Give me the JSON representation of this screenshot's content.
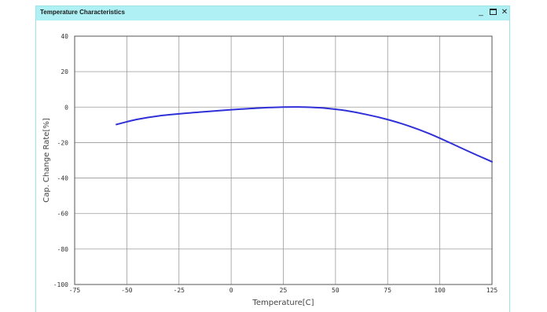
{
  "window": {
    "title": "Temperature Characteristics",
    "minimize_label": "_",
    "close_label": "✕"
  },
  "chart_data": {
    "type": "line",
    "xlabel": "Temperature[C]",
    "ylabel": "Cap. Change Rate[%]",
    "xlim": [
      -75,
      125
    ],
    "ylim": [
      -100,
      40
    ],
    "xticks": [
      -75,
      -50,
      -25,
      0,
      25,
      50,
      75,
      100,
      125
    ],
    "yticks": [
      40,
      20,
      0,
      -20,
      -40,
      -60,
      -80,
      -100
    ],
    "grid": true,
    "line_color": "#3030d8",
    "series": [
      {
        "x": [
          -55,
          -45,
          -35,
          -25,
          -15,
          -5,
          5,
          15,
          25,
          30,
          35,
          45,
          55,
          65,
          75,
          85,
          95,
          105,
          115,
          125
        ],
        "y": [
          -9.8,
          -6.9,
          -5.0,
          -3.8,
          -2.8,
          -1.9,
          -1.1,
          -0.4,
          0.0,
          0.1,
          0.0,
          -0.6,
          -2.0,
          -4.2,
          -7.0,
          -10.6,
          -15.0,
          -20.2,
          -25.6,
          -30.8
        ]
      }
    ]
  }
}
